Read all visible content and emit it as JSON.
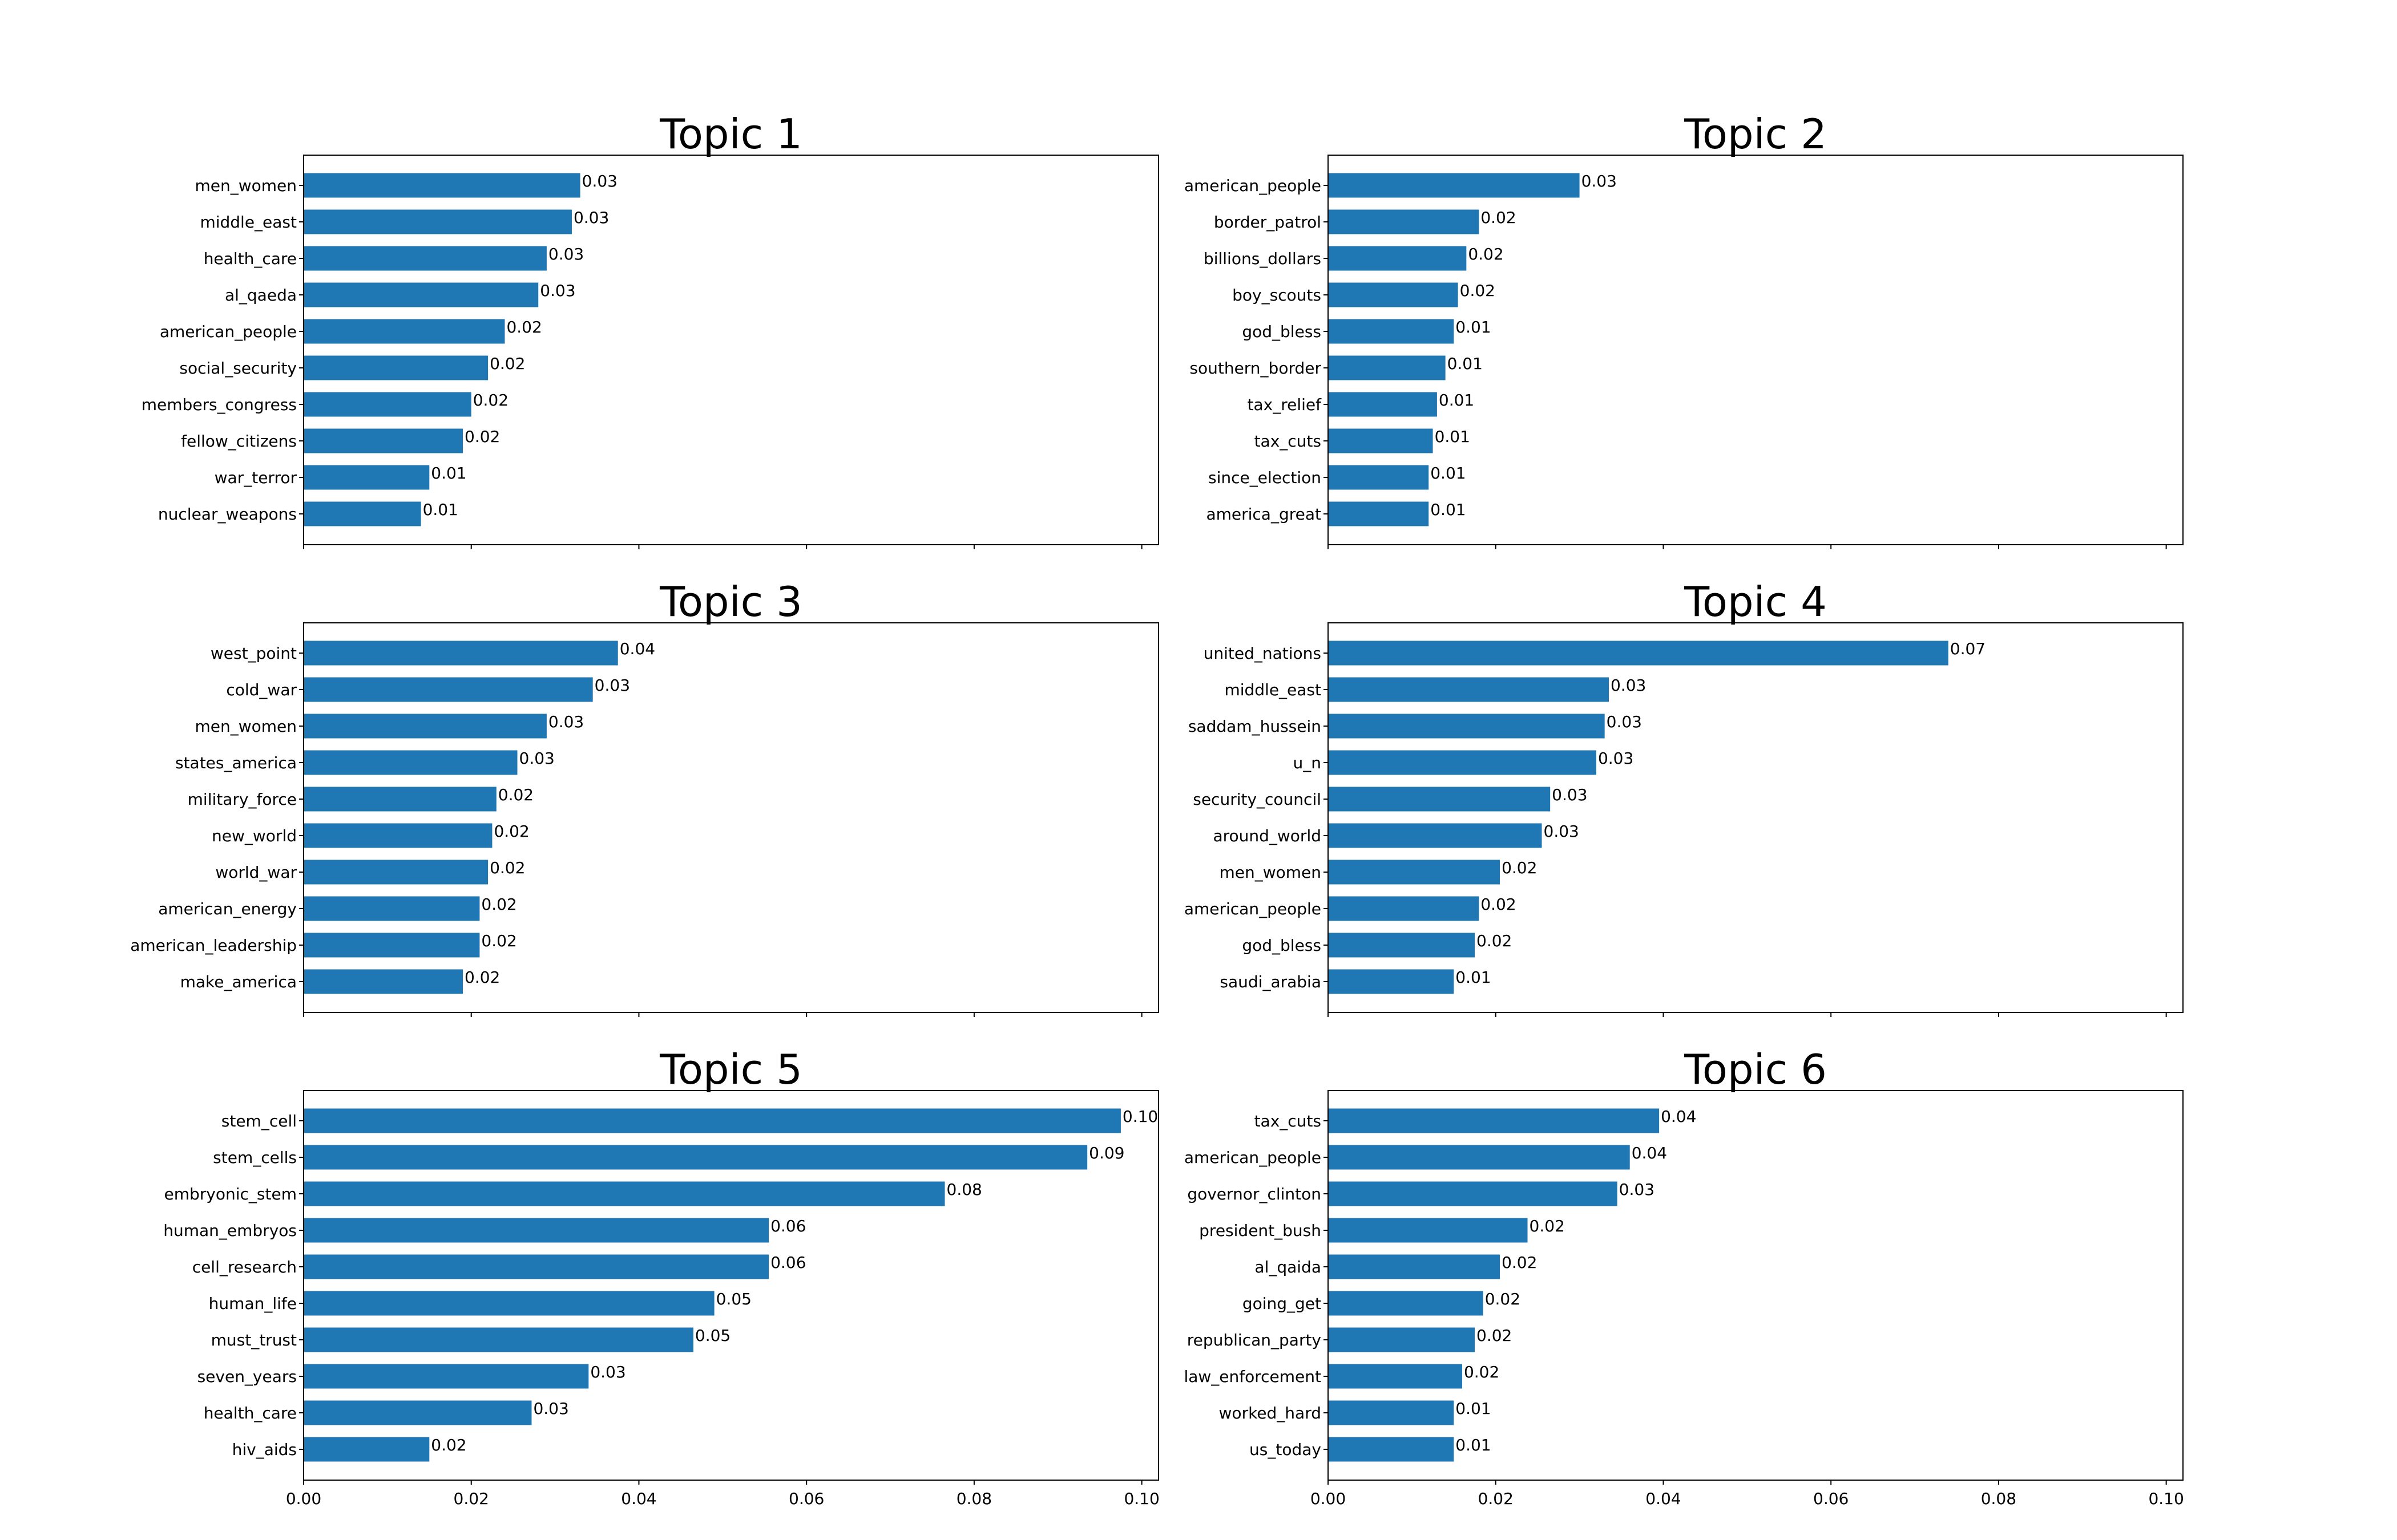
{
  "colors": {
    "bar": "#1f77b4",
    "axis": "#000000",
    "background": "#ffffff"
  },
  "chart_data": [
    {
      "type": "bar",
      "orientation": "horizontal",
      "title": "Topic 1",
      "categories": [
        "men_women",
        "middle_east",
        "health_care",
        "al_qaeda",
        "american_people",
        "social_security",
        "members_congress",
        "fellow_citizens",
        "war_terror",
        "nuclear_weapons"
      ],
      "values": [
        0.033,
        0.032,
        0.029,
        0.028,
        0.024,
        0.022,
        0.02,
        0.019,
        0.015,
        0.014
      ],
      "value_labels": [
        "0.03",
        "0.03",
        "0.03",
        "0.03",
        "0.02",
        "0.02",
        "0.02",
        "0.02",
        "0.01",
        "0.01"
      ],
      "xlim": [
        0,
        0.102
      ],
      "xticks": [
        0.0,
        0.02,
        0.04,
        0.06,
        0.08,
        0.1
      ],
      "xtick_labels": [],
      "grid": false,
      "legend": "none"
    },
    {
      "type": "bar",
      "orientation": "horizontal",
      "title": "Topic 2",
      "categories": [
        "american_people",
        "border_patrol",
        "billions_dollars",
        "boy_scouts",
        "god_bless",
        "southern_border",
        "tax_relief",
        "tax_cuts",
        "since_election",
        "america_great"
      ],
      "values": [
        0.03,
        0.018,
        0.0165,
        0.0155,
        0.015,
        0.014,
        0.013,
        0.0125,
        0.012,
        0.012
      ],
      "value_labels": [
        "0.03",
        "0.02",
        "0.02",
        "0.02",
        "0.01",
        "0.01",
        "0.01",
        "0.01",
        "0.01",
        "0.01"
      ],
      "xlim": [
        0,
        0.102
      ],
      "xticks": [
        0.0,
        0.02,
        0.04,
        0.06,
        0.08,
        0.1
      ],
      "xtick_labels": [],
      "grid": false,
      "legend": "none"
    },
    {
      "type": "bar",
      "orientation": "horizontal",
      "title": "Topic 3",
      "categories": [
        "west_point",
        "cold_war",
        "men_women",
        "states_america",
        "military_force",
        "new_world",
        "world_war",
        "american_energy",
        "american_leadership",
        "make_america"
      ],
      "values": [
        0.0375,
        0.0345,
        0.029,
        0.0255,
        0.023,
        0.0225,
        0.022,
        0.021,
        0.021,
        0.019
      ],
      "value_labels": [
        "0.04",
        "0.03",
        "0.03",
        "0.03",
        "0.02",
        "0.02",
        "0.02",
        "0.02",
        "0.02",
        "0.02"
      ],
      "xlim": [
        0,
        0.102
      ],
      "xticks": [
        0.0,
        0.02,
        0.04,
        0.06,
        0.08,
        0.1
      ],
      "xtick_labels": [],
      "grid": false,
      "legend": "none"
    },
    {
      "type": "bar",
      "orientation": "horizontal",
      "title": "Topic 4",
      "categories": [
        "united_nations",
        "middle_east",
        "saddam_hussein",
        "u_n",
        "security_council",
        "around_world",
        "men_women",
        "american_people",
        "god_bless",
        "saudi_arabia"
      ],
      "values": [
        0.074,
        0.0335,
        0.033,
        0.032,
        0.0265,
        0.0255,
        0.0205,
        0.018,
        0.0175,
        0.015
      ],
      "value_labels": [
        "0.07",
        "0.03",
        "0.03",
        "0.03",
        "0.03",
        "0.03",
        "0.02",
        "0.02",
        "0.02",
        "0.01"
      ],
      "xlim": [
        0,
        0.102
      ],
      "xticks": [
        0.0,
        0.02,
        0.04,
        0.06,
        0.08,
        0.1
      ],
      "xtick_labels": [],
      "grid": false,
      "legend": "none"
    },
    {
      "type": "bar",
      "orientation": "horizontal",
      "title": "Topic 5",
      "categories": [
        "stem_cell",
        "stem_cells",
        "embryonic_stem",
        "human_embryos",
        "cell_research",
        "human_life",
        "must_trust",
        "seven_years",
        "health_care",
        "hiv_aids"
      ],
      "values": [
        0.0975,
        0.0935,
        0.0765,
        0.0555,
        0.0555,
        0.049,
        0.0465,
        0.034,
        0.0272,
        0.015
      ],
      "value_labels": [
        "0.10",
        "0.09",
        "0.08",
        "0.06",
        "0.06",
        "0.05",
        "0.05",
        "0.03",
        "0.03",
        "0.02"
      ],
      "xlim": [
        0,
        0.102
      ],
      "xticks": [
        0.0,
        0.02,
        0.04,
        0.06,
        0.08,
        0.1
      ],
      "xtick_labels": [
        "0.00",
        "0.02",
        "0.04",
        "0.06",
        "0.08",
        "0.10"
      ],
      "grid": false,
      "legend": "none"
    },
    {
      "type": "bar",
      "orientation": "horizontal",
      "title": "Topic 6",
      "categories": [
        "tax_cuts",
        "american_people",
        "governor_clinton",
        "president_bush",
        "al_qaida",
        "going_get",
        "republican_party",
        "law_enforcement",
        "worked_hard",
        "us_today"
      ],
      "values": [
        0.0395,
        0.036,
        0.0345,
        0.0238,
        0.0205,
        0.0185,
        0.0175,
        0.016,
        0.015,
        0.015
      ],
      "value_labels": [
        "0.04",
        "0.04",
        "0.03",
        "0.02",
        "0.02",
        "0.02",
        "0.02",
        "0.02",
        "0.01",
        "0.01"
      ],
      "xlim": [
        0,
        0.102
      ],
      "xticks": [
        0.0,
        0.02,
        0.04,
        0.06,
        0.08,
        0.1
      ],
      "xtick_labels": [
        "0.00",
        "0.02",
        "0.04",
        "0.06",
        "0.08",
        "0.10"
      ],
      "grid": false,
      "legend": "none"
    }
  ]
}
